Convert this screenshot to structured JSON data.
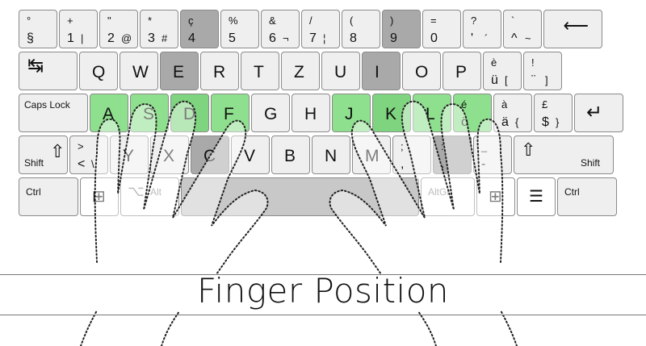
{
  "title": "Finger Position",
  "keyboard": {
    "row1": [
      {
        "id": "sect",
        "tl": "°",
        "bl": "§",
        "style": "light"
      },
      {
        "id": "1",
        "tl": "+",
        "bl": "1",
        "br": "|",
        "style": "light"
      },
      {
        "id": "2",
        "tl": "\"",
        "bl": "2",
        "br": "@",
        "style": "light"
      },
      {
        "id": "3",
        "tl": "*",
        "bl": "3",
        "br": "#",
        "style": "light"
      },
      {
        "id": "4",
        "tl": "ç",
        "bl": "4",
        "style": "dark"
      },
      {
        "id": "5",
        "tl": "%",
        "bl": "5",
        "style": "light"
      },
      {
        "id": "6",
        "tl": "&",
        "bl": "6",
        "br": "¬",
        "style": "light"
      },
      {
        "id": "7",
        "tl": "/",
        "bl": "7",
        "br": "¦",
        "style": "light"
      },
      {
        "id": "8",
        "tl": "(",
        "bl": "8",
        "style": "light"
      },
      {
        "id": "9",
        "tl": ")",
        "bl": "9",
        "style": "dark"
      },
      {
        "id": "0",
        "tl": "=",
        "bl": "0",
        "style": "light"
      },
      {
        "id": "apos",
        "tl": "?",
        "bl": "'",
        "br": "´",
        "style": "light"
      },
      {
        "id": "circ",
        "tl": "`",
        "bl": "^",
        "br": "~",
        "style": "light"
      },
      {
        "id": "backspace",
        "label": "⟵",
        "style": "light"
      }
    ],
    "row2": [
      {
        "id": "tab",
        "label": "↹",
        "style": "light"
      },
      {
        "id": "q",
        "big": "Q",
        "style": "light"
      },
      {
        "id": "w",
        "big": "W",
        "style": "light"
      },
      {
        "id": "e",
        "big": "E",
        "style": "dark"
      },
      {
        "id": "r",
        "big": "R",
        "style": "light"
      },
      {
        "id": "t",
        "big": "T",
        "style": "light"
      },
      {
        "id": "z",
        "big": "Z",
        "style": "light"
      },
      {
        "id": "u",
        "big": "U",
        "style": "light"
      },
      {
        "id": "i",
        "big": "I",
        "style": "dark"
      },
      {
        "id": "o",
        "big": "O",
        "style": "light"
      },
      {
        "id": "p",
        "big": "P",
        "style": "light"
      },
      {
        "id": "udia",
        "tl": "è",
        "bl": "ü",
        "br": "[",
        "style": "light"
      },
      {
        "id": "excl",
        "tl": "!",
        "bl": "¨",
        "br": "]",
        "style": "light"
      }
    ],
    "row3": [
      {
        "id": "caps",
        "label": "Caps Lock",
        "style": "light"
      },
      {
        "id": "a",
        "big": "A",
        "style": "green"
      },
      {
        "id": "s",
        "big": "S",
        "style": "green"
      },
      {
        "id": "d",
        "big": "D",
        "style": "green2"
      },
      {
        "id": "f",
        "big": "F",
        "style": "green"
      },
      {
        "id": "g",
        "big": "G",
        "style": "light"
      },
      {
        "id": "h",
        "big": "H",
        "style": "light"
      },
      {
        "id": "j",
        "big": "J",
        "style": "green"
      },
      {
        "id": "k",
        "big": "K",
        "style": "green2"
      },
      {
        "id": "l",
        "big": "L",
        "style": "green"
      },
      {
        "id": "eacute",
        "tl": "é",
        "bl": "ö",
        "style": "green"
      },
      {
        "id": "agrave",
        "tl": "à",
        "bl": "ä",
        "br": "{",
        "style": "light"
      },
      {
        "id": "pound",
        "tl": "£",
        "bl": "$",
        "br": "}",
        "style": "light"
      },
      {
        "id": "enter",
        "label": "↵",
        "style": "light"
      }
    ],
    "row4": [
      {
        "id": "lshift",
        "label": "Shift",
        "icon": "⇧",
        "style": "light"
      },
      {
        "id": "lt",
        "tl": ">",
        "bl": "<",
        "br": "\\",
        "style": "light"
      },
      {
        "id": "y",
        "big": "Y",
        "style": "light"
      },
      {
        "id": "x",
        "big": "X",
        "style": "light"
      },
      {
        "id": "c",
        "big": "C",
        "style": "dark"
      },
      {
        "id": "v",
        "big": "V",
        "style": "light"
      },
      {
        "id": "b",
        "big": "B",
        "style": "light"
      },
      {
        "id": "n",
        "big": "N",
        "style": "light"
      },
      {
        "id": "m",
        "big": "M",
        "style": "light"
      },
      {
        "id": "comma",
        "tl": ";",
        "bl": ",",
        "style": "light"
      },
      {
        "id": "period",
        "tl": ":",
        "bl": ".",
        "style": "dark"
      },
      {
        "id": "minus",
        "tl": "_",
        "bl": "-",
        "style": "light"
      },
      {
        "id": "rshift",
        "label": "Shift",
        "icon": "⇧",
        "style": "light"
      }
    ],
    "row5": [
      {
        "id": "lctrl",
        "label": "Ctrl",
        "style": "light"
      },
      {
        "id": "lwin",
        "label": "",
        "style": "white"
      },
      {
        "id": "alt",
        "label": "Alt",
        "icon": "⌥",
        "style": "white"
      },
      {
        "id": "space",
        "label": "",
        "style": "mid"
      },
      {
        "id": "altgr",
        "label": "AltGr",
        "style": "white"
      },
      {
        "id": "rwin",
        "label": "",
        "style": "white"
      },
      {
        "id": "menu",
        "label": "",
        "style": "white"
      },
      {
        "id": "rctrl",
        "label": "Ctrl",
        "style": "light"
      }
    ]
  }
}
